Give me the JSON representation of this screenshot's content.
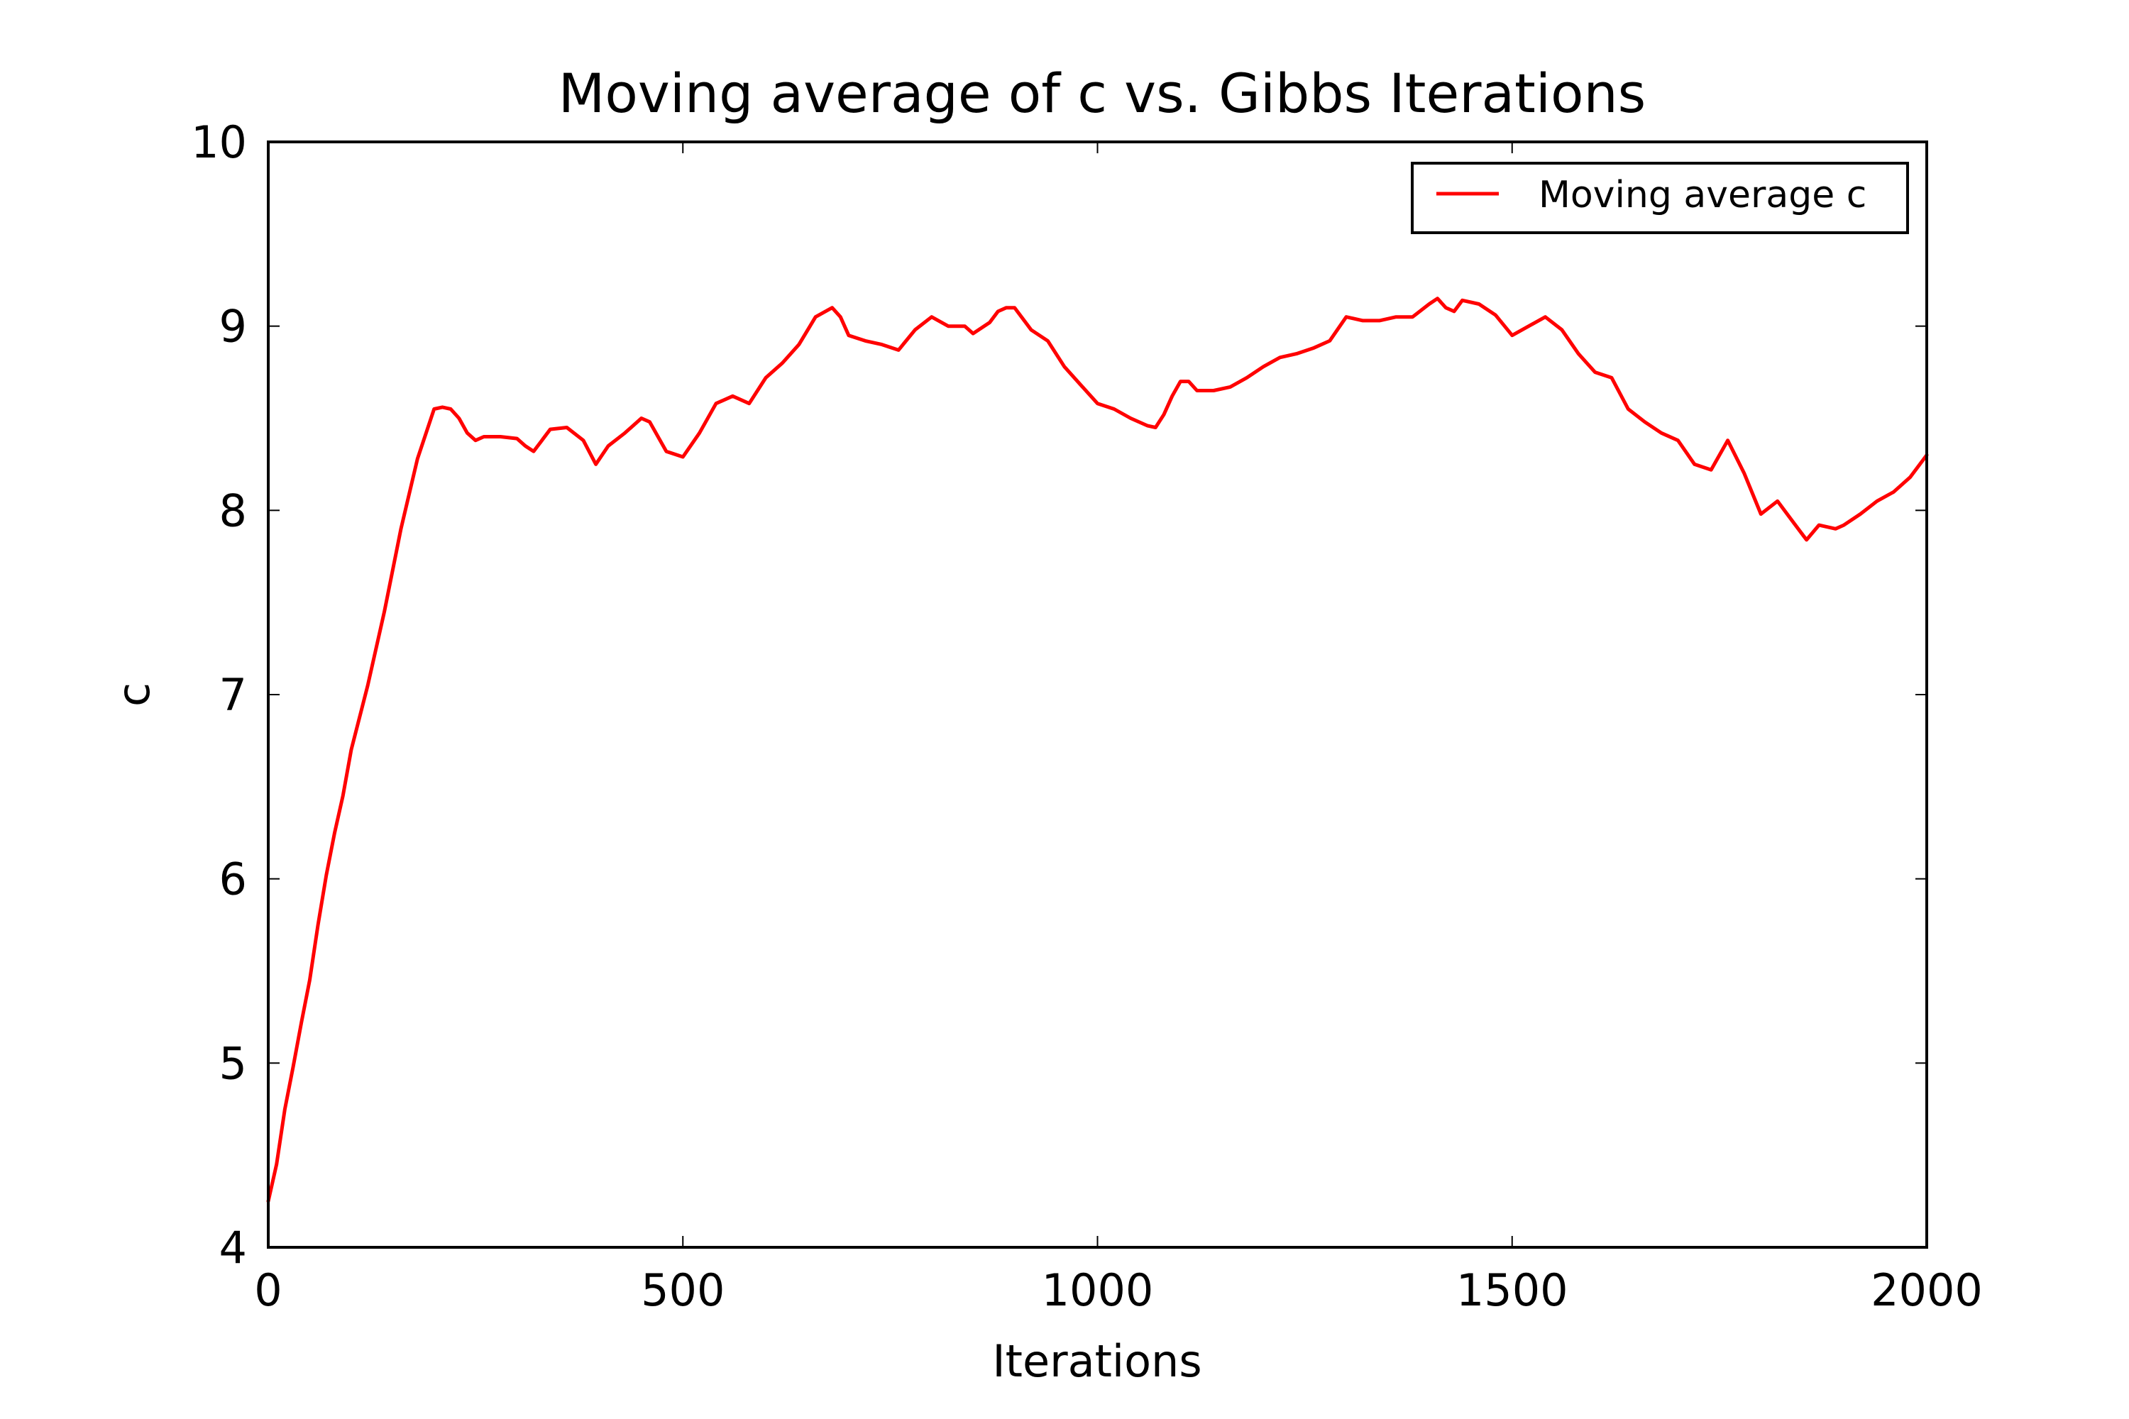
{
  "chart_data": {
    "type": "line",
    "title": "Moving average of c vs. Gibbs Iterations",
    "xlabel": "Iterations",
    "ylabel": "c",
    "xlim": [
      0,
      2000
    ],
    "ylim": [
      4,
      10
    ],
    "xticks": [
      0,
      500,
      1000,
      1500,
      2000
    ],
    "yticks": [
      4,
      5,
      6,
      7,
      8,
      9,
      10
    ],
    "xtick_labels": [
      "0",
      "500",
      "1000",
      "1500",
      "2000"
    ],
    "ytick_labels": [
      "4",
      "5",
      "6",
      "7",
      "8",
      "9",
      "10"
    ],
    "grid": false,
    "legend_position": "top-right",
    "series": [
      {
        "name": "Moving average c",
        "color": "#ff0000",
        "x": [
          0,
          10,
          20,
          30,
          40,
          50,
          60,
          70,
          80,
          90,
          100,
          120,
          140,
          160,
          180,
          200,
          210,
          220,
          230,
          240,
          250,
          260,
          280,
          300,
          310,
          320,
          330,
          340,
          360,
          380,
          395,
          410,
          430,
          450,
          460,
          480,
          500,
          520,
          540,
          560,
          580,
          600,
          620,
          640,
          660,
          680,
          690,
          700,
          720,
          740,
          760,
          780,
          800,
          820,
          840,
          850,
          870,
          880,
          890,
          900,
          920,
          940,
          960,
          980,
          1000,
          1020,
          1040,
          1060,
          1070,
          1080,
          1090,
          1100,
          1110,
          1120,
          1140,
          1160,
          1180,
          1200,
          1220,
          1240,
          1260,
          1280,
          1300,
          1320,
          1340,
          1360,
          1380,
          1400,
          1410,
          1420,
          1430,
          1440,
          1460,
          1480,
          1500,
          1520,
          1540,
          1560,
          1580,
          1600,
          1620,
          1640,
          1660,
          1680,
          1700,
          1720,
          1740,
          1760,
          1780,
          1800,
          1820,
          1840,
          1855,
          1870,
          1890,
          1900,
          1920,
          1940,
          1960,
          1980,
          2000
        ],
        "values": [
          4.25,
          4.45,
          4.75,
          4.98,
          5.22,
          5.45,
          5.75,
          6.02,
          6.25,
          6.45,
          6.7,
          7.05,
          7.45,
          7.9,
          8.28,
          8.55,
          8.56,
          8.55,
          8.5,
          8.42,
          8.38,
          8.4,
          8.4,
          8.39,
          8.35,
          8.32,
          8.38,
          8.44,
          8.45,
          8.38,
          8.25,
          8.35,
          8.42,
          8.5,
          8.48,
          8.32,
          8.29,
          8.42,
          8.58,
          8.62,
          8.58,
          8.72,
          8.8,
          8.9,
          9.05,
          9.1,
          9.05,
          8.95,
          8.92,
          8.9,
          8.87,
          8.98,
          9.05,
          9.0,
          9.0,
          8.96,
          9.02,
          9.08,
          9.1,
          9.1,
          8.98,
          8.92,
          8.78,
          8.68,
          8.58,
          8.55,
          8.5,
          8.46,
          8.45,
          8.52,
          8.62,
          8.7,
          8.7,
          8.65,
          8.65,
          8.67,
          8.72,
          8.78,
          8.83,
          8.85,
          8.88,
          8.92,
          9.05,
          9.03,
          9.03,
          9.05,
          9.05,
          9.12,
          9.15,
          9.1,
          9.08,
          9.14,
          9.12,
          9.06,
          8.95,
          9.0,
          9.05,
          8.98,
          8.85,
          8.75,
          8.72,
          8.55,
          8.48,
          8.42,
          8.38,
          8.25,
          8.22,
          8.38,
          8.2,
          7.98,
          8.05,
          7.93,
          7.84,
          7.92,
          7.9,
          7.92,
          7.98,
          8.05,
          8.1,
          8.18,
          8.3
        ]
      }
    ]
  }
}
